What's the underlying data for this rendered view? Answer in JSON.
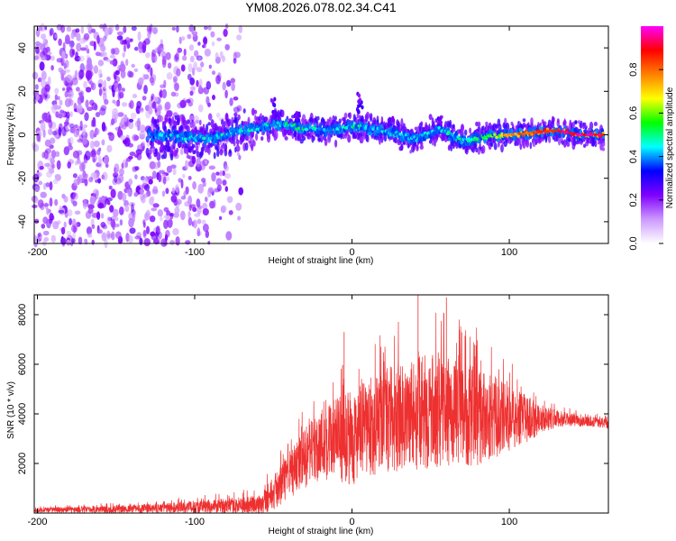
{
  "title": "YM08.2026.078.02.34.C41",
  "chart_data": [
    {
      "type": "heatmap",
      "name": "spectrogram",
      "xlabel": "Height of straight line (km)",
      "ylabel": "Frequency (Hz)",
      "xlim": [
        -202,
        163
      ],
      "ylim": [
        -50,
        50
      ],
      "xticks": [
        -200,
        -100,
        0,
        100
      ],
      "yticks": [
        -40,
        -20,
        0,
        20,
        40
      ],
      "colorbar": {
        "label": "Normalized spectral amplitude",
        "range": [
          0.0,
          1.0
        ],
        "ticks": [
          0.0,
          0.2,
          0.4,
          0.6,
          0.8
        ],
        "tick_labels": [
          "0.0",
          "0.2",
          "0.4",
          "0.6",
          "0.8"
        ],
        "colormap": [
          "#ffffff",
          "#cc99ff",
          "#8000ff",
          "#0000ff",
          "#00ffff",
          "#00ff00",
          "#ffff00",
          "#ff8000",
          "#ff0000",
          "#ff00ff"
        ]
      },
      "ridge": {
        "description_points": [
          [
            -130,
            0,
            0.4
          ],
          [
            -110,
            -1,
            0.45
          ],
          [
            -90,
            -2,
            0.45
          ],
          [
            -70,
            2,
            0.45
          ],
          [
            -55,
            4,
            0.45
          ],
          [
            -45,
            5,
            0.5
          ],
          [
            -30,
            3,
            0.5
          ],
          [
            -15,
            2,
            0.45
          ],
          [
            0,
            4,
            0.5
          ],
          [
            10,
            3,
            0.45
          ],
          [
            25,
            1,
            0.45
          ],
          [
            40,
            -2,
            0.45
          ],
          [
            55,
            3,
            0.45
          ],
          [
            70,
            -3,
            0.5
          ],
          [
            85,
            -1,
            0.55
          ],
          [
            100,
            0,
            0.7
          ],
          [
            115,
            1,
            0.8
          ],
          [
            130,
            2,
            0.85
          ],
          [
            145,
            0,
            0.9
          ],
          [
            160,
            0,
            0.85
          ]
        ],
        "noise_region_x": [
          -202,
          -70
        ]
      }
    },
    {
      "type": "line",
      "name": "snr",
      "xlabel": "Height of straight line (km)",
      "ylabel": "SNR (10 * v/v)",
      "xlim": [
        -202,
        163
      ],
      "ylim": [
        0,
        8800
      ],
      "xticks": [
        -200,
        -100,
        0,
        100
      ],
      "yticks": [
        2000,
        4000,
        6000,
        8000
      ],
      "color": "#ee3030",
      "envelope": {
        "x": [
          -202,
          -150,
          -120,
          -100,
          -80,
          -60,
          -50,
          -40,
          -30,
          -20,
          -10,
          0,
          10,
          20,
          30,
          40,
          50,
          60,
          70,
          80,
          90,
          100,
          110,
          120,
          130,
          140,
          150,
          163
        ],
        "mean": [
          120,
          150,
          200,
          250,
          280,
          320,
          800,
          1500,
          2200,
          2800,
          3000,
          3000,
          3400,
          3700,
          3900,
          4000,
          4100,
          4100,
          4000,
          3900,
          3900,
          3800,
          3800,
          3800,
          3800,
          3750,
          3700,
          3600
        ],
        "amplitude": [
          100,
          150,
          200,
          250,
          300,
          400,
          700,
          900,
          1200,
          1500,
          1700,
          1900,
          2000,
          2100,
          2200,
          2300,
          2300,
          2200,
          2100,
          2000,
          1700,
          1300,
          1000,
          600,
          350,
          250,
          200,
          200
        ]
      },
      "peaks": [
        {
          "x": -5,
          "y": 7300
        },
        {
          "x": 42,
          "y": 8800
        },
        {
          "x": 60,
          "y": 8700
        }
      ]
    }
  ]
}
